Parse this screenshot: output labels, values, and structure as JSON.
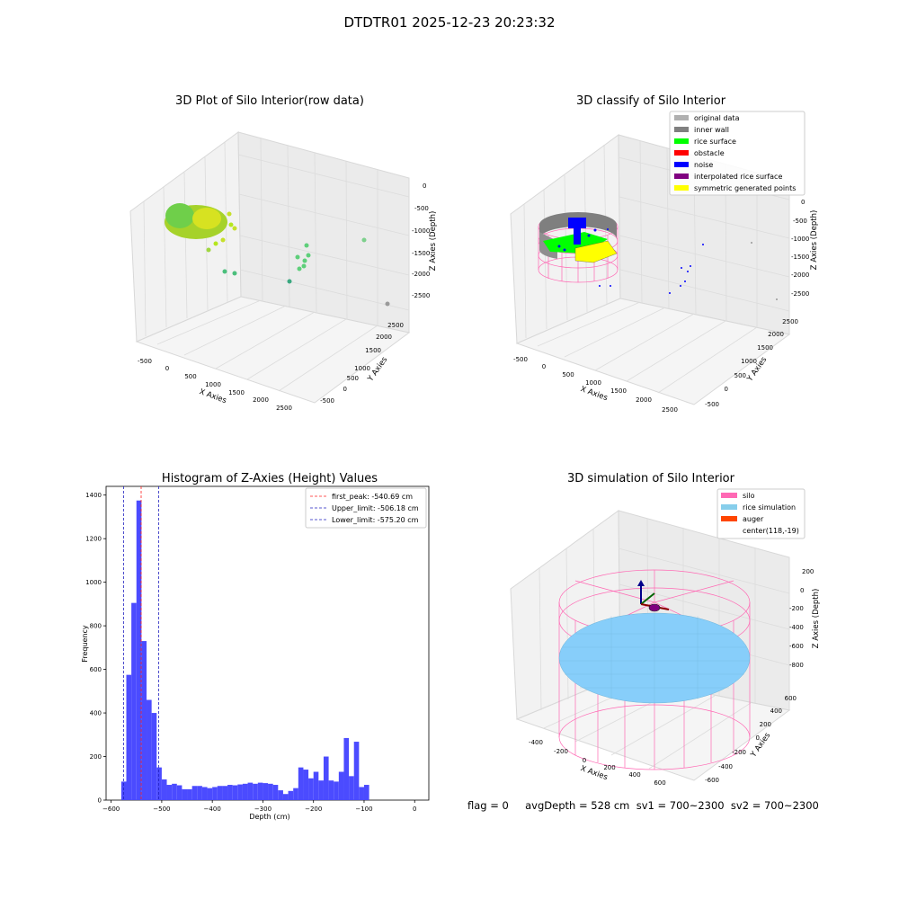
{
  "suptitle": "DTDTR01 2025-12-23 20:23:32",
  "footer": "flag = 0     avgDepth = 528 cm  sv1 = 700~2300  sv2 = 700~2300",
  "colors": {
    "hist_bar": "#4b4bff",
    "first_peak_line": "#ff2020",
    "limit_line": "#2020c0",
    "silo_wire": "#ff69b4",
    "rice_sim": "#87cefa",
    "inner_wall": "#808080",
    "rice_surface": "#00ff00",
    "noise": "#0000ff",
    "symmetric_points": "#ffff00",
    "raw_points": "#b5e61d"
  },
  "plot1": {
    "title": "3D Plot of Silo Interior(row data)",
    "xlabel": "X Axies",
    "ylabel": "Y Axies",
    "zlabel": "Z Axies (Depth)",
    "x_ticks": [
      "-500",
      "0",
      "500",
      "1000",
      "1500",
      "2000",
      "2500"
    ],
    "y_ticks": [
      "-500",
      "0",
      "500",
      "1000",
      "1500",
      "2000",
      "2500"
    ],
    "z_ticks": [
      "0",
      "-500",
      "-1000",
      "-1500",
      "-2000",
      "-2500"
    ]
  },
  "plot2": {
    "title": "3D classify of Silo Interior",
    "xlabel": "X Axies",
    "ylabel": "Y Axies",
    "zlabel": "Z Axies (Depth)",
    "x_ticks": [
      "-500",
      "0",
      "500",
      "1000",
      "1500",
      "2000",
      "2500"
    ],
    "y_ticks": [
      "-500",
      "0",
      "500",
      "1000",
      "1500",
      "2000",
      "2500"
    ],
    "z_ticks": [
      "0",
      "-500",
      "-1000",
      "-1500",
      "-2000",
      "-2500"
    ],
    "legend": [
      {
        "label": "original data",
        "color": "#b0b0b0"
      },
      {
        "label": "inner wall",
        "color": "#808080"
      },
      {
        "label": "rice surface",
        "color": "#00ff00"
      },
      {
        "label": "obstacle",
        "color": "#ff0000"
      },
      {
        "label": "noise",
        "color": "#0000ff"
      },
      {
        "label": "interpolated rice surface",
        "color": "#800080"
      },
      {
        "label": "symmetric generated points",
        "color": "#ffff00"
      }
    ]
  },
  "plot3": {
    "title": "Histogram of Z-Axies (Height) Values",
    "xlabel": "Depth (cm)",
    "ylabel": "Frequency",
    "legend": [
      {
        "label": "first_peak: -540.69 cm",
        "color": "#ff2020"
      },
      {
        "label": "Upper_limit: -506.18 cm",
        "color": "#2020c0"
      },
      {
        "label": "Lower_limit: -575.20 cm",
        "color": "#2020c0"
      }
    ]
  },
  "plot4": {
    "title": "3D simulation of Silo Interior",
    "xlabel": "X Axies",
    "ylabel": "Y Axies",
    "zlabel": "Z Axies (Depth)",
    "x_ticks": [
      "-400",
      "-200",
      "0",
      "200",
      "400",
      "600"
    ],
    "y_ticks": [
      "-600",
      "-400",
      "-200",
      "0",
      "200",
      "400",
      "600"
    ],
    "z_ticks": [
      "200",
      "0",
      "-200",
      "-400",
      "-600",
      "-800"
    ],
    "legend": [
      {
        "label": "silo",
        "color": "#ff69b4"
      },
      {
        "label": "rice simulation",
        "color": "#87ceeb"
      },
      {
        "label": "auger",
        "color": "#ff4500"
      },
      {
        "label": "center(118,-19)",
        "color": "#ffffff"
      }
    ]
  },
  "chart_data": [
    {
      "type": "bar",
      "title": "Histogram of Z-Axies (Height) Values",
      "xlabel": "Depth (cm)",
      "ylabel": "Frequency",
      "xlim": [
        -610,
        28
      ],
      "ylim": [
        0,
        1440
      ],
      "x_ticks": [
        -600,
        -500,
        -400,
        -300,
        -200,
        -100,
        0
      ],
      "y_ticks": [
        0,
        200,
        400,
        600,
        800,
        1000,
        1200,
        1400
      ],
      "bin_edges_start": -580,
      "bin_width": 10,
      "values": [
        85,
        575,
        905,
        1375,
        730,
        460,
        400,
        150,
        95,
        70,
        75,
        68,
        50,
        50,
        65,
        65,
        60,
        55,
        60,
        65,
        65,
        70,
        68,
        72,
        75,
        80,
        75,
        80,
        78,
        75,
        70,
        45,
        28,
        42,
        55,
        150,
        140,
        100,
        130,
        90,
        200,
        90,
        85,
        130,
        285,
        110,
        268,
        60,
        70
      ],
      "vlines": [
        {
          "label": "first_peak: -540.69 cm",
          "x": -540.69,
          "color": "#ff2020"
        },
        {
          "label": "Upper_limit: -506.18 cm",
          "x": -506.18,
          "color": "#2020c0"
        },
        {
          "label": "Lower_limit: -575.20 cm",
          "x": -575.2,
          "color": "#2020c0"
        }
      ]
    }
  ]
}
